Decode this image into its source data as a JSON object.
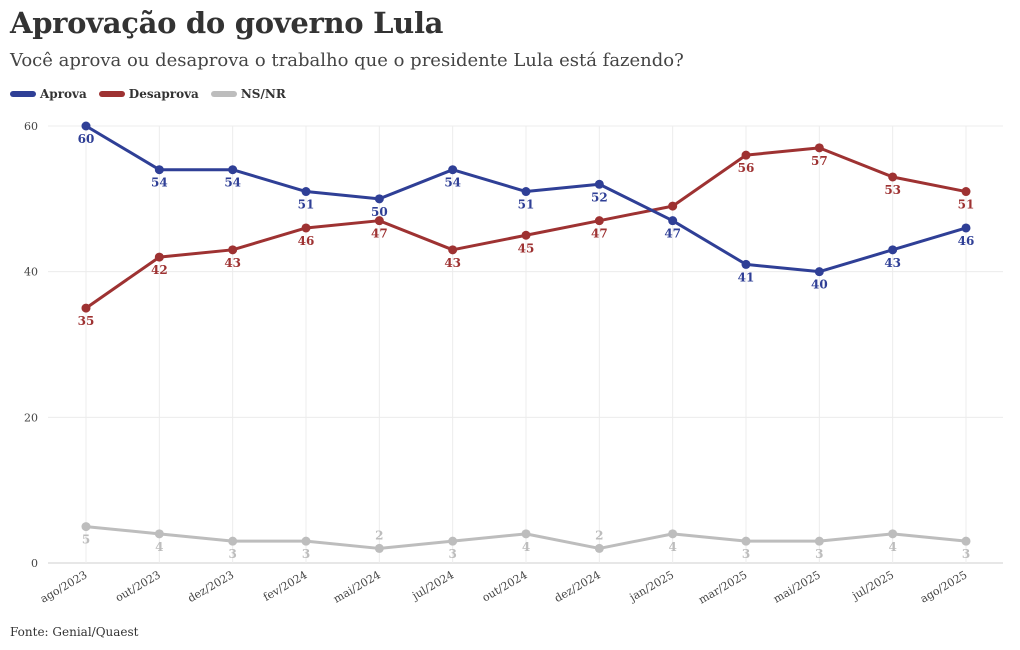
{
  "title": "Aprovação do governo Lula",
  "subtitle": "Você aprova ou desaprova o trabalho que o presidente Lula está fazendo?",
  "source": "Fonte: Genial/Quaest",
  "colors": {
    "aprova": "#2f3f96",
    "desaprova": "#9e3232",
    "nsnr": "#bdbdbd",
    "grid": "#ececec"
  },
  "legend": [
    {
      "label": "Aprova",
      "color": "#2f3f96"
    },
    {
      "label": "Desaprova",
      "color": "#9e3232"
    },
    {
      "label": "NS/NR",
      "color": "#bdbdbd"
    }
  ],
  "chart_data": {
    "type": "line",
    "title": "Aprovação do governo Lula",
    "xlabel": "",
    "ylabel": "",
    "ylim": [
      0,
      60
    ],
    "yticks": [
      0,
      20,
      40,
      60
    ],
    "grid": true,
    "legend_position": "top-left",
    "categories": [
      "ago/2023",
      "out/2023",
      "dez/2023",
      "fev/2024",
      "mai/2024",
      "jul/2024",
      "out/2024",
      "dez/2024",
      "jan/2025",
      "mar/2025",
      "mai/2025",
      "jul/2025",
      "ago/2025"
    ],
    "series": [
      {
        "name": "Aprova",
        "color": "#2f3f96",
        "values": [
          60,
          54,
          54,
          51,
          50,
          54,
          51,
          52,
          47,
          41,
          40,
          43,
          46
        ],
        "label_side": [
          "below",
          "below",
          "below",
          "below",
          "below",
          "below",
          "below",
          "below",
          "below",
          "below",
          "below",
          "below",
          "below"
        ]
      },
      {
        "name": "Desaprova",
        "color": "#9e3232",
        "values": [
          35,
          42,
          43,
          46,
          47,
          43,
          45,
          47,
          49,
          56,
          57,
          53,
          51
        ],
        "label_side": [
          "below",
          "below",
          "below",
          "below",
          "below",
          "below",
          "below",
          "below",
          "none",
          "below",
          "below",
          "below",
          "below"
        ]
      },
      {
        "name": "NS/NR",
        "color": "#bdbdbd",
        "values": [
          5,
          4,
          3,
          3,
          2,
          3,
          4,
          2,
          4,
          3,
          3,
          4,
          3
        ],
        "label_side": [
          "below",
          "below",
          "below",
          "below",
          "above",
          "below",
          "below",
          "above",
          "below",
          "below",
          "below",
          "below",
          "below"
        ]
      }
    ]
  }
}
